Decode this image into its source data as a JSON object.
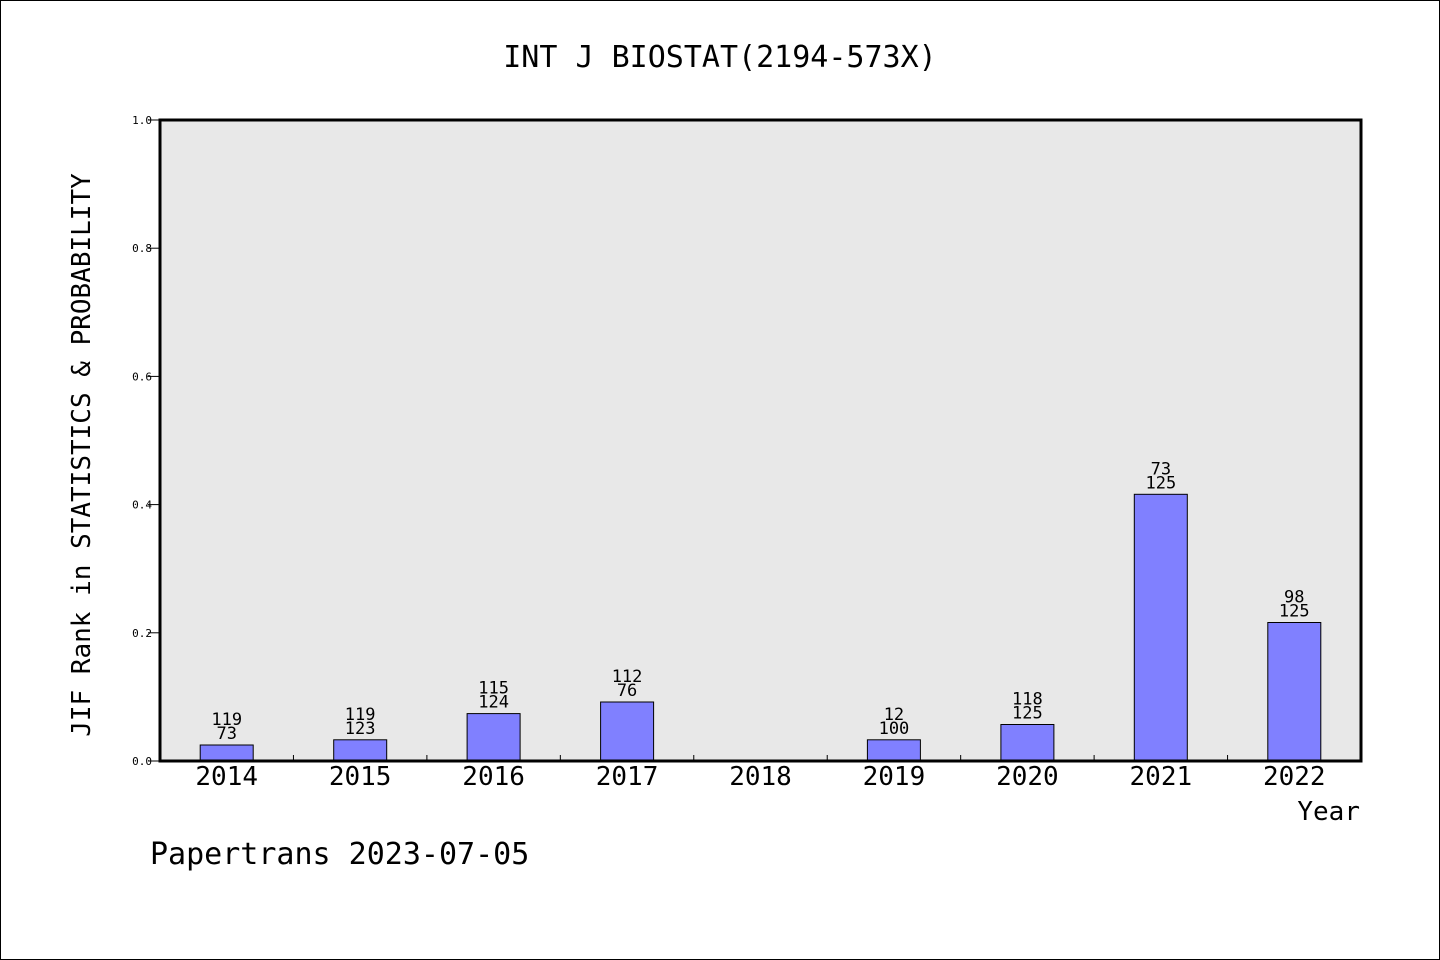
{
  "chart_data": {
    "type": "bar",
    "title": "INT J BIOSTAT(2194-573X)",
    "xlabel": "Year",
    "ylabel": "JIF Rank in STATISTICS & PROBABILITY",
    "ylim": [
      0,
      1.0
    ],
    "yticks": [
      "0.0",
      "0.2",
      "0.4",
      "0.6",
      "0.8",
      "1.0"
    ],
    "categories": [
      "2014",
      "2015",
      "2016",
      "2017",
      "2018",
      "2019",
      "2020",
      "2021",
      "2022"
    ],
    "values": [
      0.025,
      0.033,
      0.074,
      0.092,
      null,
      0.033,
      0.057,
      0.416,
      0.216
    ],
    "labels": [
      [
        "119",
        "73"
      ],
      [
        "119",
        "123"
      ],
      [
        "115",
        "124"
      ],
      [
        "112",
        "76"
      ],
      null,
      [
        "12",
        "100"
      ],
      [
        "118",
        "125"
      ],
      [
        "73",
        "125"
      ],
      [
        "98",
        "125"
      ]
    ],
    "bar_color": "#8080ff",
    "plot_background": "#e8e8e8",
    "grid": false,
    "legend": "none"
  },
  "footer": "Papertrans 2023-07-05"
}
